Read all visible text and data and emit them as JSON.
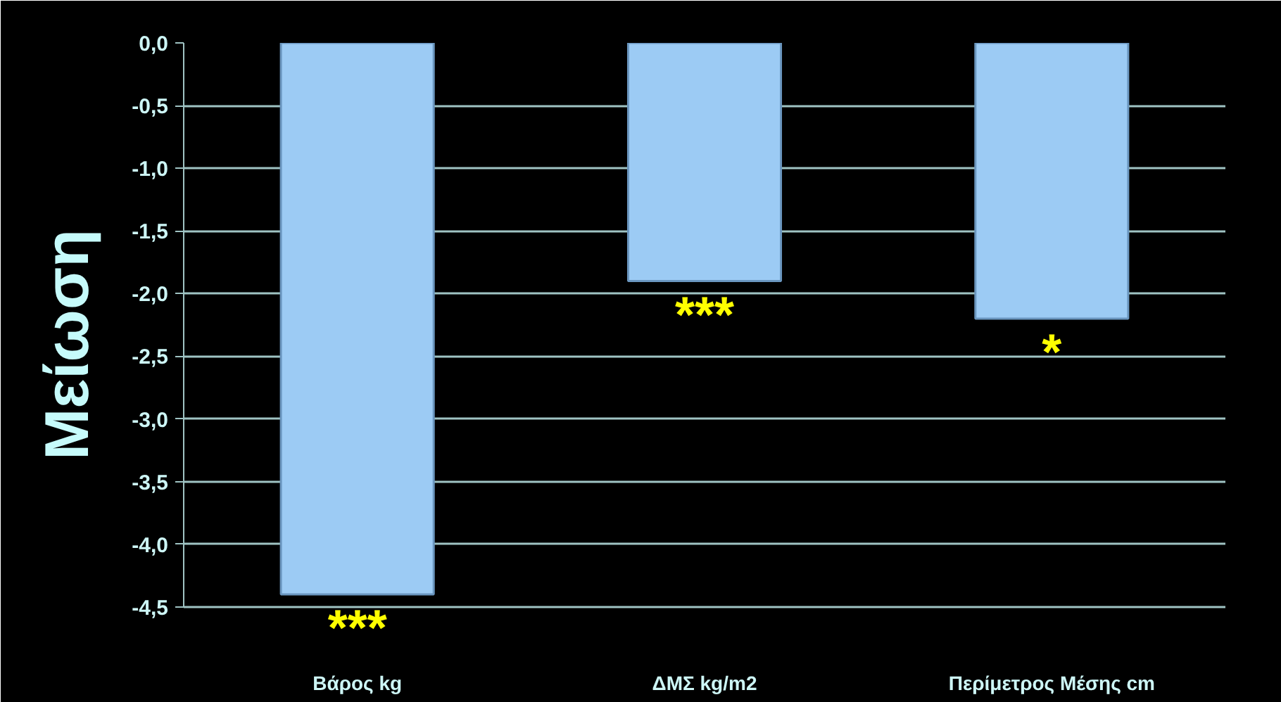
{
  "chart_data": {
    "type": "bar",
    "ylabel": "Μείωση",
    "categories": [
      "Βάρος kg",
      "ΔΜΣ kg/m2",
      "Περίμετρος Μέσης cm"
    ],
    "values": [
      -4.4,
      -1.9,
      -2.2
    ],
    "color": "#9ccbf4",
    "ylim": [
      -4.5,
      0
    ],
    "yticks": [
      {
        "value": 0,
        "label": "0,0"
      },
      {
        "value": -0.5,
        "label": "-0,5"
      },
      {
        "value": -1,
        "label": "-1,0"
      },
      {
        "value": -1.5,
        "label": "-1,5"
      },
      {
        "value": -2,
        "label": "-2,0"
      },
      {
        "value": -2.5,
        "label": "-2,5"
      },
      {
        "value": -3,
        "label": "-3,0"
      },
      {
        "value": -3.5,
        "label": "-3,5"
      },
      {
        "value": -4,
        "label": "-4,0"
      },
      {
        "value": -4.5,
        "label": "-4,5"
      }
    ],
    "grid": "y",
    "annotations": [
      {
        "text": "***",
        "x": "Βάρος kg",
        "y": -4.4
      },
      {
        "text": "***",
        "x": "ΔΜΣ kg/m2",
        "y": -1.9
      },
      {
        "text": "*",
        "x": "Περίμετρος Μέσης cm",
        "y": -2.2
      }
    ]
  }
}
